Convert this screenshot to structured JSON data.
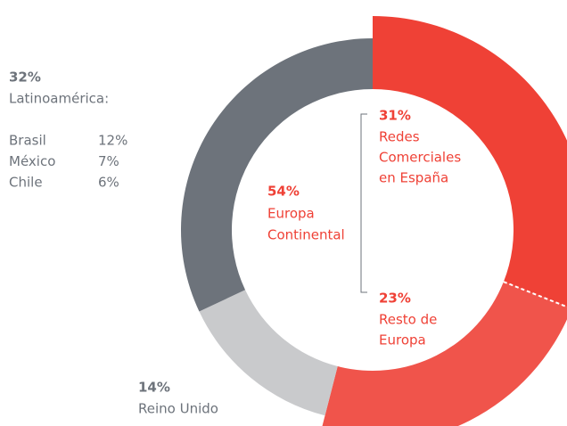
{
  "chart_data": {
    "type": "donut",
    "segments": [
      {
        "label": [
          "Redes",
          "Comerciales",
          "en España"
        ],
        "value": 31,
        "value_label": "31%",
        "color": "#ef4136"
      },
      {
        "label": [
          "Resto de",
          "Europa"
        ],
        "value": 23,
        "value_label": "23%",
        "color": "#f0544b"
      },
      {
        "label": [
          "Reino Unido"
        ],
        "value": 14,
        "value_label": "14%",
        "color": "#c9cacc"
      },
      {
        "label": [
          "Latinoamérica:"
        ],
        "value": 32,
        "value_label": "32%",
        "color": "#6d737b"
      }
    ],
    "group": {
      "label": [
        "Europa",
        "Continental"
      ],
      "value": 54,
      "value_label": "54%"
    },
    "breakdown": [
      {
        "name": "Brasil",
        "value": 12,
        "value_label": "12%"
      },
      {
        "name": "México",
        "value": 7,
        "value_label": "7%"
      },
      {
        "name": "Chile",
        "value": 6,
        "value_label": "6%"
      }
    ]
  }
}
